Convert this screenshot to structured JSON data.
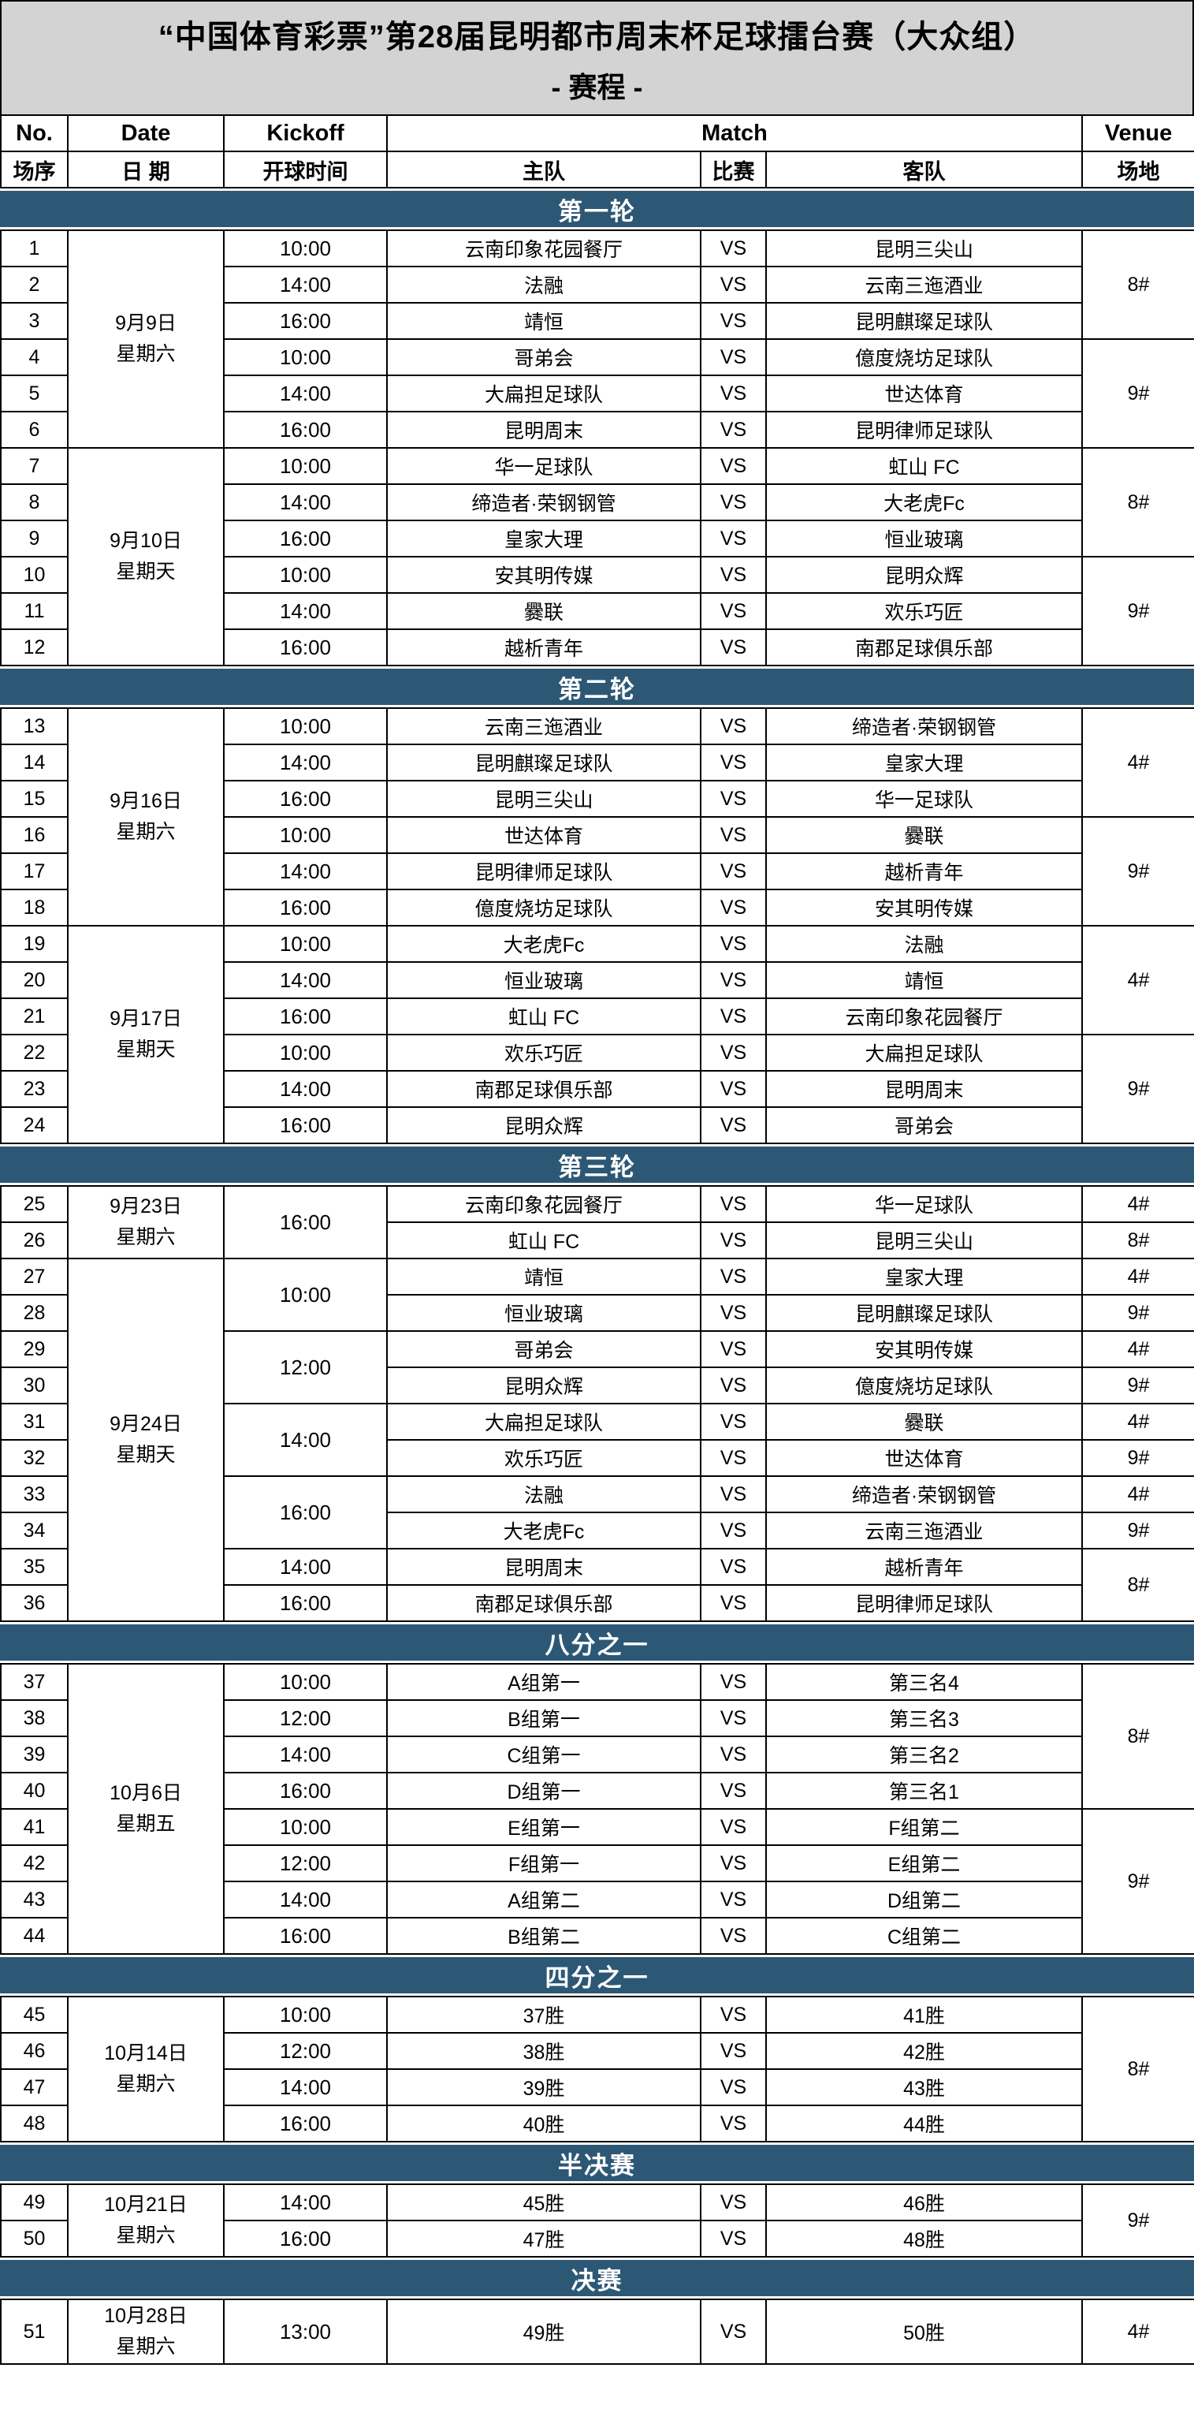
{
  "title": {
    "line1": "“中国体育彩票”第28届昆明都市周末杯足球擂台赛（大众组）",
    "line2": "- 赛程 -"
  },
  "header": {
    "en": [
      "No.",
      "Date",
      "Kickoff",
      "Match",
      "Venue"
    ],
    "cn": [
      "场序",
      "日 期",
      "开球时间",
      "主队",
      "比赛",
      "客队",
      "场地"
    ]
  },
  "match": {
    "vs_label": "VS"
  },
  "colors": {
    "band_bg": "#2C5875",
    "band_text": "#FFFFFF",
    "title_bg": "#D3D3D3",
    "border": "#000000"
  },
  "sections": [
    {
      "label": "第一轮",
      "rows": [
        {
          "no": "1",
          "date": {
            "lines": [
              "9月9日",
              "星期六"
            ],
            "span": 6
          },
          "kickoff": {
            "text": "10:00"
          },
          "home": "云南印象花园餐厅",
          "away": "昆明三尖山",
          "venue": {
            "text": "8#",
            "span": 3
          }
        },
        {
          "no": "2",
          "kickoff": {
            "text": "14:00"
          },
          "home": "法融",
          "away": "云南三迤酒业"
        },
        {
          "no": "3",
          "kickoff": {
            "text": "16:00"
          },
          "home": "靖恒",
          "away": "昆明麒璨足球队"
        },
        {
          "no": "4",
          "kickoff": {
            "text": "10:00"
          },
          "home": "哥弟会",
          "away": "億度烧坊足球队",
          "venue": {
            "text": "9#",
            "span": 3
          }
        },
        {
          "no": "5",
          "kickoff": {
            "text": "14:00"
          },
          "home": "大扁担足球队",
          "away": "世达体育"
        },
        {
          "no": "6",
          "kickoff": {
            "text": "16:00"
          },
          "home": "昆明周末",
          "away": "昆明律师足球队"
        },
        {
          "no": "7",
          "date": {
            "lines": [
              "9月10日",
              "星期天"
            ],
            "span": 6
          },
          "kickoff": {
            "text": "10:00"
          },
          "home": "华一足球队",
          "away": "虹山 FC",
          "venue": {
            "text": "8#",
            "span": 3
          }
        },
        {
          "no": "8",
          "kickoff": {
            "text": "14:00"
          },
          "home": "缔造者·荣钢钢管",
          "away": "大老虎Fc"
        },
        {
          "no": "9",
          "kickoff": {
            "text": "16:00"
          },
          "home": "皇家大理",
          "away": "恒业玻璃"
        },
        {
          "no": "10",
          "kickoff": {
            "text": "10:00"
          },
          "home": "安其明传媒",
          "away": "昆明众辉",
          "venue": {
            "text": "9#",
            "span": 3
          }
        },
        {
          "no": "11",
          "kickoff": {
            "text": "14:00"
          },
          "home": "爨联",
          "away": "欢乐巧匠"
        },
        {
          "no": "12",
          "kickoff": {
            "text": "16:00"
          },
          "home": "越析青年",
          "away": "南郡足球俱乐部"
        }
      ]
    },
    {
      "label": "第二轮",
      "rows": [
        {
          "no": "13",
          "date": {
            "lines": [
              "9月16日",
              "星期六"
            ],
            "span": 6
          },
          "kickoff": {
            "text": "10:00"
          },
          "home": "云南三迤酒业",
          "away": "缔造者·荣钢钢管",
          "venue": {
            "text": "4#",
            "span": 3
          }
        },
        {
          "no": "14",
          "kickoff": {
            "text": "14:00"
          },
          "home": "昆明麒璨足球队",
          "away": "皇家大理"
        },
        {
          "no": "15",
          "kickoff": {
            "text": "16:00"
          },
          "home": "昆明三尖山",
          "away": "华一足球队"
        },
        {
          "no": "16",
          "kickoff": {
            "text": "10:00"
          },
          "home": "世达体育",
          "away": "爨联",
          "venue": {
            "text": "9#",
            "span": 3
          }
        },
        {
          "no": "17",
          "kickoff": {
            "text": "14:00"
          },
          "home": "昆明律师足球队",
          "away": "越析青年"
        },
        {
          "no": "18",
          "kickoff": {
            "text": "16:00"
          },
          "home": "億度烧坊足球队",
          "away": "安其明传媒"
        },
        {
          "no": "19",
          "date": {
            "lines": [
              "9月17日",
              "星期天"
            ],
            "span": 6
          },
          "kickoff": {
            "text": "10:00"
          },
          "home": "大老虎Fc",
          "away": "法融",
          "venue": {
            "text": "4#",
            "span": 3
          }
        },
        {
          "no": "20",
          "kickoff": {
            "text": "14:00"
          },
          "home": "恒业玻璃",
          "away": "靖恒"
        },
        {
          "no": "21",
          "kickoff": {
            "text": "16:00"
          },
          "home": "虹山 FC",
          "away": "云南印象花园餐厅"
        },
        {
          "no": "22",
          "kickoff": {
            "text": "10:00"
          },
          "home": "欢乐巧匠",
          "away": "大扁担足球队",
          "venue": {
            "text": "9#",
            "span": 3
          }
        },
        {
          "no": "23",
          "kickoff": {
            "text": "14:00"
          },
          "home": "南郡足球俱乐部",
          "away": "昆明周末"
        },
        {
          "no": "24",
          "kickoff": {
            "text": "16:00"
          },
          "home": "昆明众辉",
          "away": "哥弟会"
        }
      ]
    },
    {
      "label": "第三轮",
      "rows": [
        {
          "no": "25",
          "date": {
            "lines": [
              "9月23日",
              "星期六"
            ],
            "span": 2
          },
          "kickoff": {
            "text": "16:00",
            "span": 2
          },
          "home": "云南印象花园餐厅",
          "away": "华一足球队",
          "venue": {
            "text": "4#",
            "span": 1
          }
        },
        {
          "no": "26",
          "home": "虹山 FC",
          "away": "昆明三尖山",
          "venue": {
            "text": "8#",
            "span": 1
          }
        },
        {
          "no": "27",
          "date": {
            "lines": [
              "9月24日",
              "星期天"
            ],
            "span": 10
          },
          "kickoff": {
            "text": "10:00",
            "span": 2
          },
          "home": "靖恒",
          "away": "皇家大理",
          "venue": {
            "text": "4#",
            "span": 1
          }
        },
        {
          "no": "28",
          "home": "恒业玻璃",
          "away": "昆明麒璨足球队",
          "venue": {
            "text": "9#",
            "span": 1
          }
        },
        {
          "no": "29",
          "kickoff": {
            "text": "12:00",
            "span": 2
          },
          "home": "哥弟会",
          "away": "安其明传媒",
          "venue": {
            "text": "4#",
            "span": 1
          }
        },
        {
          "no": "30",
          "home": "昆明众辉",
          "away": "億度烧坊足球队",
          "venue": {
            "text": "9#",
            "span": 1
          }
        },
        {
          "no": "31",
          "kickoff": {
            "text": "14:00",
            "span": 2
          },
          "home": "大扁担足球队",
          "away": "爨联",
          "venue": {
            "text": "4#",
            "span": 1
          }
        },
        {
          "no": "32",
          "home": "欢乐巧匠",
          "away": "世达体育",
          "venue": {
            "text": "9#",
            "span": 1
          }
        },
        {
          "no": "33",
          "kickoff": {
            "text": "16:00",
            "span": 2
          },
          "home": "法融",
          "away": "缔造者·荣钢钢管",
          "venue": {
            "text": "4#",
            "span": 1
          }
        },
        {
          "no": "34",
          "home": "大老虎Fc",
          "away": "云南三迤酒业",
          "venue": {
            "text": "9#",
            "span": 1
          }
        },
        {
          "no": "35",
          "kickoff": {
            "text": "14:00"
          },
          "home": "昆明周末",
          "away": "越析青年",
          "venue": {
            "text": "8#",
            "span": 2
          }
        },
        {
          "no": "36",
          "kickoff": {
            "text": "16:00"
          },
          "home": "南郡足球俱乐部",
          "away": "昆明律师足球队"
        }
      ]
    },
    {
      "label": "八分之一",
      "rows": [
        {
          "no": "37",
          "date": {
            "lines": [
              "10月6日",
              "星期五"
            ],
            "span": 8
          },
          "kickoff": {
            "text": "10:00"
          },
          "home": "A组第一",
          "away": "第三名4",
          "venue": {
            "text": "8#",
            "span": 4
          }
        },
        {
          "no": "38",
          "kickoff": {
            "text": "12:00"
          },
          "home": "B组第一",
          "away": "第三名3"
        },
        {
          "no": "39",
          "kickoff": {
            "text": "14:00"
          },
          "home": "C组第一",
          "away": "第三名2"
        },
        {
          "no": "40",
          "kickoff": {
            "text": "16:00"
          },
          "home": "D组第一",
          "away": "第三名1"
        },
        {
          "no": "41",
          "kickoff": {
            "text": "10:00"
          },
          "home": "E组第一",
          "away": "F组第二",
          "venue": {
            "text": "9#",
            "span": 4
          }
        },
        {
          "no": "42",
          "kickoff": {
            "text": "12:00"
          },
          "home": "F组第一",
          "away": "E组第二"
        },
        {
          "no": "43",
          "kickoff": {
            "text": "14:00"
          },
          "home": "A组第二",
          "away": "D组第二"
        },
        {
          "no": "44",
          "kickoff": {
            "text": "16:00"
          },
          "home": "B组第二",
          "away": "C组第二"
        }
      ]
    },
    {
      "label": "四分之一",
      "rows": [
        {
          "no": "45",
          "date": {
            "lines": [
              "10月14日",
              "星期六"
            ],
            "span": 4
          },
          "kickoff": {
            "text": "10:00"
          },
          "home": "37胜",
          "away": "41胜",
          "venue": {
            "text": "8#",
            "span": 4
          }
        },
        {
          "no": "46",
          "kickoff": {
            "text": "12:00"
          },
          "home": "38胜",
          "away": "42胜"
        },
        {
          "no": "47",
          "kickoff": {
            "text": "14:00"
          },
          "home": "39胜",
          "away": "43胜"
        },
        {
          "no": "48",
          "kickoff": {
            "text": "16:00"
          },
          "home": "40胜",
          "away": "44胜"
        }
      ]
    },
    {
      "label": "半决赛",
      "rows": [
        {
          "no": "49",
          "date": {
            "lines": [
              "10月21日",
              "星期六"
            ],
            "span": 2
          },
          "kickoff": {
            "text": "14:00"
          },
          "home": "45胜",
          "away": "46胜",
          "venue": {
            "text": "9#",
            "span": 2
          }
        },
        {
          "no": "50",
          "kickoff": {
            "text": "16:00"
          },
          "home": "47胜",
          "away": "48胜"
        }
      ]
    },
    {
      "label": "决赛",
      "rows": [
        {
          "no": "51",
          "tall": true,
          "date": {
            "lines": [
              "10月28日",
              "星期六"
            ],
            "span": 1
          },
          "kickoff": {
            "text": "13:00"
          },
          "home": "49胜",
          "away": "50胜",
          "venue": {
            "text": "4#",
            "span": 1
          }
        }
      ]
    }
  ]
}
